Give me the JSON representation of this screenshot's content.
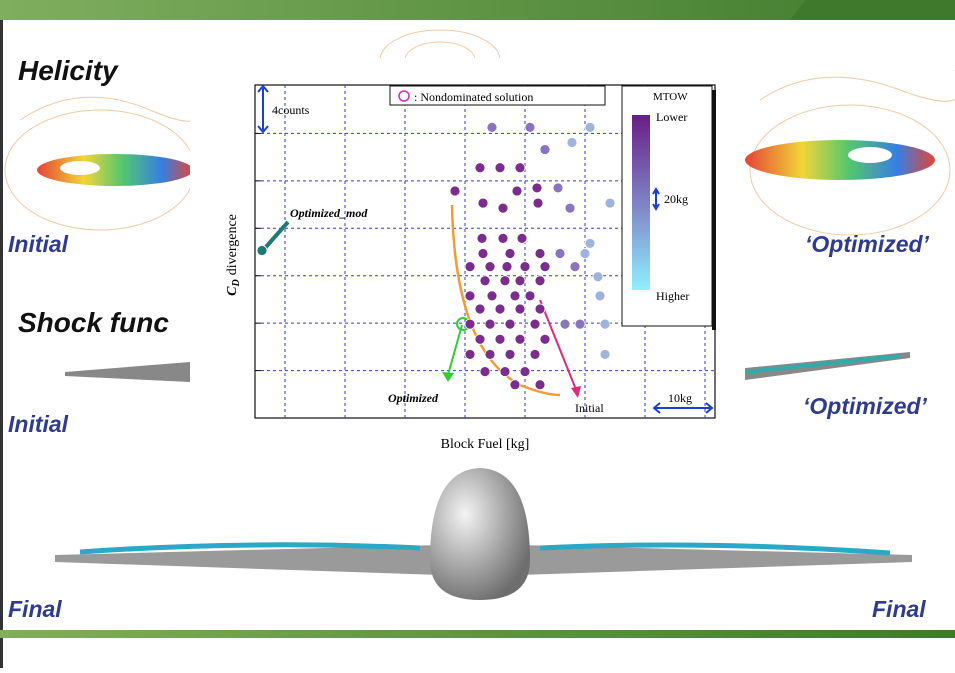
{
  "slide": {
    "helicity": "Helicity",
    "shock": "Shock func",
    "initial_top": "Initial",
    "optimized_top": "‘Optimized’",
    "initial_mid": "Initial",
    "optimized_mid": "‘Optimized’",
    "final_left": "Final",
    "final_right": "Final"
  },
  "chart_data": {
    "type": "scatter",
    "xlabel": "Block Fuel [kg]",
    "ylabel_symbol": "C",
    "ylabel_subscript": "D",
    "ylabel_text": "divergence",
    "legend_text": ": Nondominated solution",
    "colorbar": {
      "title": "MTOW",
      "top": "Lower",
      "scale": "20kg",
      "bottom": "Higher"
    },
    "annotations": {
      "vertical_scale": "4counts",
      "horizontal_scale": "10kg",
      "optimized_mod": "Optimized_mod",
      "optimized": "Optimized",
      "initial": "Initial"
    },
    "xlim": [
      0,
      46
    ],
    "ylim": [
      0,
      33
    ],
    "xticks": [
      3,
      9,
      15,
      21,
      27,
      33,
      39,
      45
    ],
    "yticks": [
      4.7,
      9.4,
      14.1,
      18.8,
      23.5,
      28.2
    ],
    "grid": true,
    "series": [
      {
        "color": "#7b2d8e",
        "x": [
          22.5,
          24.5,
          26.5,
          26.2,
          28.2,
          22.8,
          24.8,
          28.3,
          22.7,
          24.8,
          26.7,
          22.8,
          25.5,
          28.5,
          21.5,
          23.5,
          25.2,
          27,
          29,
          23,
          25,
          26.5,
          28.5,
          21.5,
          23.7,
          26,
          27.5,
          22.5,
          24.5,
          26.5,
          28.5,
          21.5,
          23.5,
          25.5,
          28,
          22.5,
          24.5,
          26.5,
          29,
          21.5,
          23.5,
          25.5,
          28,
          23,
          25,
          27,
          26,
          28.5,
          20
        ],
        "y": [
          24.8,
          24.8,
          24.8,
          22.5,
          22.8,
          21.3,
          20.8,
          21.3,
          17.8,
          17.8,
          17.8,
          16.3,
          16.3,
          16.3,
          15,
          15,
          15,
          15,
          15,
          13.6,
          13.6,
          13.6,
          13.6,
          12.1,
          12.1,
          12.1,
          12.1,
          10.8,
          10.8,
          10.8,
          10.8,
          9.3,
          9.3,
          9.3,
          9.3,
          7.8,
          7.8,
          7.8,
          7.8,
          6.3,
          6.3,
          6.3,
          6.3,
          4.6,
          4.6,
          4.6,
          3.3,
          3.3,
          22.5
        ]
      },
      {
        "color": "#8a74bd",
        "x": [
          23.7,
          27.5,
          29,
          30.3,
          31.5,
          30.5,
          32,
          31,
          32.5
        ],
        "y": [
          28.8,
          28.8,
          26.6,
          22.8,
          20.8,
          16.3,
          15,
          9.3,
          9.3
        ]
      },
      {
        "color": "#9fb3dc",
        "x": [
          33.5,
          31.7,
          35.5,
          33.5,
          33,
          34.3,
          34.5,
          35,
          35
        ],
        "y": [
          28.8,
          27.3,
          21.3,
          17.3,
          16.3,
          14,
          12.1,
          9.3,
          6.3
        ]
      },
      {
        "color": "#1f7a78",
        "x": [
          0.7
        ],
        "y": [
          16.6
        ]
      }
    ]
  }
}
